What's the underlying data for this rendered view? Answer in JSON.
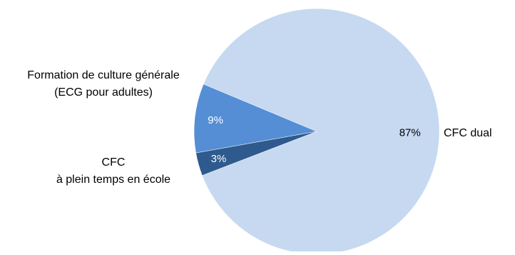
{
  "chart_data": {
    "type": "pie",
    "start_angle_deg": -159,
    "direction": "counterclockwise",
    "slices": [
      {
        "label_lines": [
          "CFC dual"
        ],
        "value": 87,
        "value_label": "87%",
        "color": "#c6d9f1",
        "text_color": "#000000"
      },
      {
        "label_lines": [
          "CFC",
          "à plein temps en école"
        ],
        "value": 9,
        "value_label": "9%",
        "color": "#558ed5",
        "text_color": "#ffffff"
      },
      {
        "label_lines": [
          "Formation de culture générale",
          "(ECG pour adultes)"
        ],
        "value": 3,
        "value_label": "3%",
        "color": "#2e5a8e",
        "text_color": "#ffffff"
      }
    ]
  }
}
